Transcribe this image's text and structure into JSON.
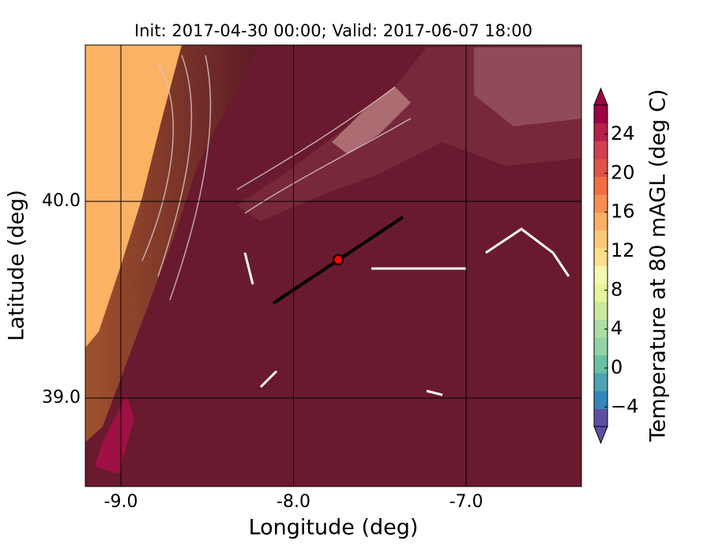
{
  "chart_data": {
    "type": "contour",
    "title": "Init: 2017-04-30 00:00; Valid: 2017-06-07 18:00",
    "x_label": "Longitude (deg)",
    "y_label": "Latitude (deg)",
    "xlim": [
      -9.206,
      -6.332
    ],
    "ylim": [
      38.55,
      40.795
    ],
    "xticks": [
      {
        "value": -9,
        "label": "-9.0"
      },
      {
        "value": -8,
        "label": "-8.0"
      },
      {
        "value": -7,
        "label": "-7.0"
      }
    ],
    "yticks": [
      {
        "value": 39,
        "label": "39.0"
      },
      {
        "value": 40,
        "label": "40.0"
      }
    ],
    "grid": true,
    "cross_section": {
      "lon": [
        -8.117,
        -7.366
      ],
      "lat": [
        39.482,
        39.92
      ],
      "color": "#000000"
    },
    "point": {
      "lon": -7.741,
      "lat": 39.703,
      "color": "#ff0000"
    },
    "colorbar": {
      "label": "Temperature at 80 mAGL (deg C)",
      "clim": [
        -6,
        27
      ],
      "ticks": [
        {
          "value": -4,
          "label": "−4"
        },
        0,
        4,
        8,
        12,
        16,
        20,
        24
      ],
      "colors": [
        "#5e4fa2",
        "#3288bd",
        "#4ba4b1",
        "#66c2a5",
        "#91d3a4",
        "#abdda4",
        "#cbe99d",
        "#e6f598",
        "#f4faad",
        "#fee08b",
        "#fdc877",
        "#fdae61",
        "#f88d52",
        "#f46d43",
        "#e0524a",
        "#d53e4f",
        "#b81f48",
        "#9e0142"
      ]
    }
  }
}
